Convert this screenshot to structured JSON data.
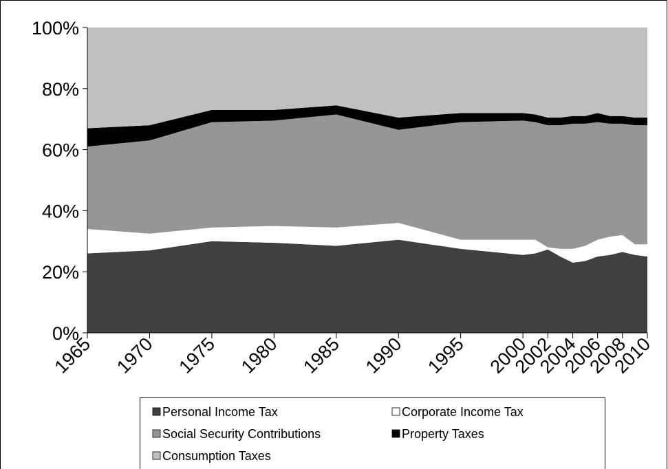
{
  "chart_data": {
    "type": "stacked_area",
    "x": [
      1965,
      1970,
      1975,
      1980,
      1985,
      1990,
      1995,
      2000,
      2001,
      2002,
      2003,
      2004,
      2005,
      2006,
      2007,
      2008,
      2009,
      2010
    ],
    "series": [
      {
        "name": "Personal Income Tax",
        "color": "#404040",
        "values": [
          26,
          27,
          30,
          29.5,
          28.5,
          30.5,
          27.5,
          25.5,
          26,
          27.3,
          25,
          23,
          23.5,
          25,
          25.5,
          26.5,
          25.5,
          25
        ]
      },
      {
        "name": "Corporate Income Tax",
        "color": "#ffffff",
        "values": [
          8,
          5.5,
          4.5,
          5.5,
          6,
          5.5,
          3,
          5,
          4.5,
          0.7,
          2.5,
          4.5,
          5,
          5.5,
          6,
          5.5,
          3.5,
          4
        ]
      },
      {
        "name": "Social Security Contributions",
        "color": "#969696",
        "values": [
          27,
          30.5,
          34.5,
          34.5,
          37,
          30.5,
          38.5,
          39,
          38.5,
          40,
          40.5,
          41,
          40,
          38.5,
          37,
          36.5,
          39,
          39
        ]
      },
      {
        "name": "Property Taxes",
        "color": "#000000",
        "values": [
          6,
          5,
          4,
          3.5,
          3,
          4,
          3,
          2.5,
          2.5,
          2.5,
          2.5,
          2.5,
          2.5,
          3,
          2.5,
          2.5,
          2.5,
          2.5
        ]
      },
      {
        "name": "Consumption Taxes",
        "color": "#c0c0c0",
        "values": [
          33,
          32,
          27,
          27,
          25.5,
          29.5,
          28,
          28,
          28.5,
          29.5,
          29.5,
          29,
          29,
          28,
          29,
          29,
          29.5,
          29.5
        ]
      }
    ],
    "xlim": [
      1965,
      2010
    ],
    "xticks": [
      1965,
      1970,
      1975,
      1980,
      1985,
      1990,
      1995,
      2000,
      2002,
      2004,
      2006,
      2008,
      2010
    ],
    "ylim": [
      0,
      100
    ],
    "yticks": [
      {
        "value": 0,
        "label": "0%"
      },
      {
        "value": 20,
        "label": "20%"
      },
      {
        "value": 40,
        "label": "40%"
      },
      {
        "value": 60,
        "label": "60%"
      },
      {
        "value": 80,
        "label": "80%"
      },
      {
        "value": 100,
        "label": "100%"
      }
    ],
    "legend": "bottom"
  }
}
